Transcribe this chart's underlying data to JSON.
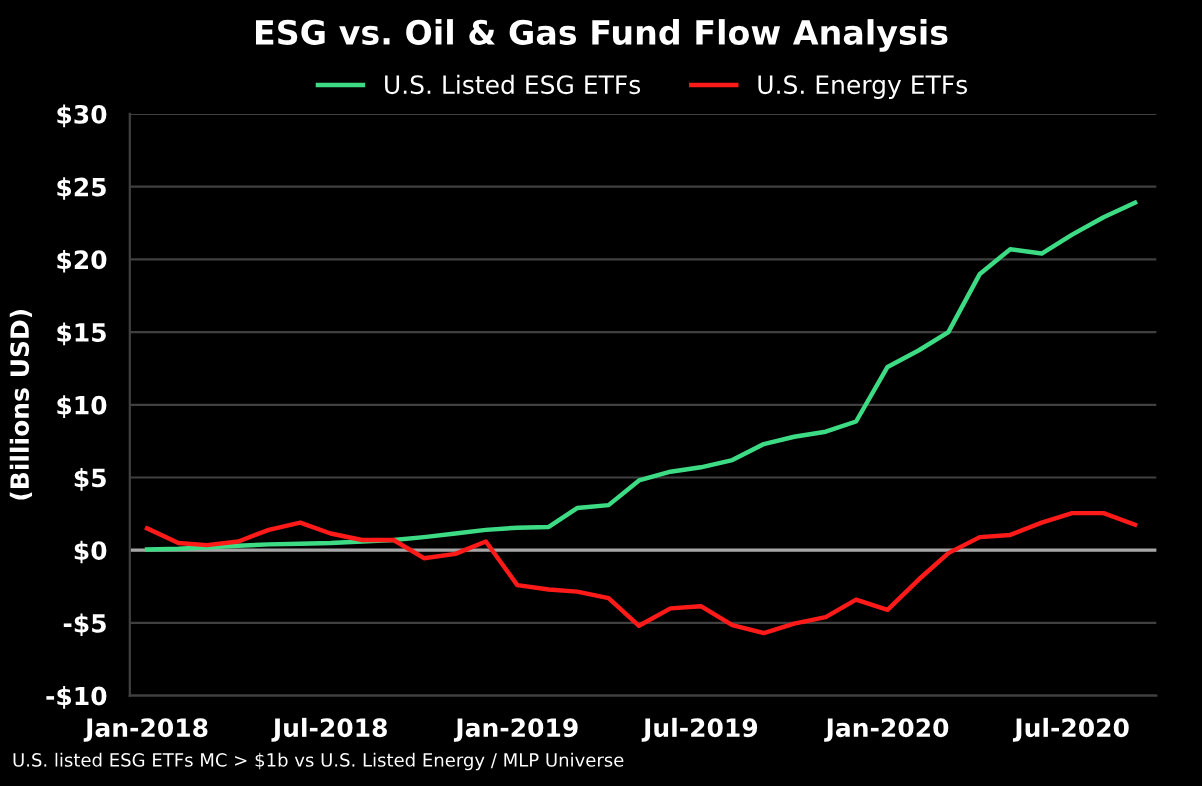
{
  "chart_data": {
    "type": "line",
    "title": "ESG vs. Oil & Gas Fund Flow Analysis",
    "ylabel": "(Billions USD)",
    "annotations": [
      "U.S. listed ESG ETFs MC > $1b vs U.S. Listed Energy / MLP Universe"
    ],
    "x": [
      "2018-01",
      "2018-02",
      "2018-03",
      "2018-04",
      "2018-05",
      "2018-06",
      "2018-07",
      "2018-08",
      "2018-09",
      "2018-10",
      "2018-11",
      "2018-12",
      "2019-01",
      "2019-02",
      "2019-03",
      "2019-04",
      "2019-05",
      "2019-06",
      "2019-07",
      "2019-08",
      "2019-09",
      "2019-10",
      "2019-11",
      "2019-12",
      "2020-01",
      "2020-02",
      "2020-03",
      "2020-04",
      "2020-05",
      "2020-06",
      "2020-07",
      "2020-08",
      "2020-09"
    ],
    "series": [
      {
        "name": "U.S. Listed ESG ETFs",
        "color": "#3ddc84",
        "values": [
          0.05,
          0.1,
          0.2,
          0.3,
          0.4,
          0.45,
          0.5,
          0.6,
          0.7,
          0.9,
          1.15,
          1.4,
          1.55,
          1.6,
          2.9,
          3.1,
          4.8,
          5.4,
          5.7,
          6.2,
          7.3,
          7.8,
          8.15,
          8.85,
          12.6,
          13.75,
          15.0,
          19.0,
          20.7,
          20.4,
          21.7,
          22.9,
          23.9
        ]
      },
      {
        "name": "U.S. Energy ETFs",
        "color": "#ff1a1a",
        "values": [
          1.5,
          0.5,
          0.35,
          0.6,
          1.4,
          1.9,
          1.15,
          0.7,
          0.7,
          -0.55,
          -0.25,
          0.6,
          -2.4,
          -2.7,
          -2.85,
          -3.3,
          -5.2,
          -4.0,
          -3.85,
          -5.15,
          -5.7,
          -5.05,
          -4.6,
          -3.4,
          -4.1,
          -2.0,
          -0.2,
          0.9,
          1.05,
          1.9,
          2.55,
          2.55,
          1.75
        ]
      }
    ],
    "xlim": [
      "2017-12-15",
      "2020-09-22"
    ],
    "xticks": [
      {
        "value": "2018-01",
        "label": "Jan-2018"
      },
      {
        "value": "2018-07",
        "label": "Jul-2018"
      },
      {
        "value": "2019-01",
        "label": "Jan-2019"
      },
      {
        "value": "2019-07",
        "label": "Jul-2019"
      },
      {
        "value": "2020-01",
        "label": "Jan-2020"
      },
      {
        "value": "2020-07",
        "label": "Jul-2020"
      }
    ],
    "ylim": [
      -10,
      30
    ],
    "yticks": [
      {
        "value": -10,
        "label": "-$10"
      },
      {
        "value": -5,
        "label": "-$5"
      },
      {
        "value": 0,
        "label": "$0"
      },
      {
        "value": 5,
        "label": "$5"
      },
      {
        "value": 10,
        "label": "$10"
      },
      {
        "value": 15,
        "label": "$15"
      },
      {
        "value": 20,
        "label": "$20"
      },
      {
        "value": 25,
        "label": "$25"
      },
      {
        "value": 30,
        "label": "$30"
      }
    ],
    "ref_lines": [
      {
        "axis": "y",
        "value": 0,
        "color": "#a6a6a6"
      }
    ],
    "grid": "y",
    "legend": "top",
    "marker": "none",
    "line_style": "solid"
  }
}
